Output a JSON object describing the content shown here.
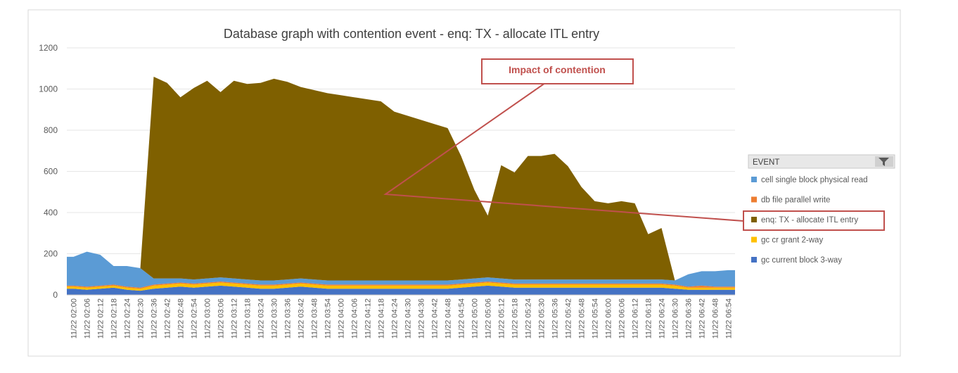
{
  "chart_data": {
    "type": "area",
    "title": "Database graph with contention event - enq: TX - allocate ITL entry",
    "xlabel": "",
    "ylabel": "",
    "ylim": [
      0,
      1200
    ],
    "yticks": [
      0,
      200,
      400,
      600,
      800,
      1000,
      1200
    ],
    "grid": true,
    "legend_position": "right",
    "legend_header": "EVENT",
    "x_tick_labels": [
      "11/22 02:00",
      "11/22 02:06",
      "11/22 02:12",
      "11/22 02:18",
      "11/22 02:24",
      "11/22 02:30",
      "11/22 02:36",
      "11/22 02:42",
      "11/22 02:48",
      "11/22 02:54",
      "11/22 03:00",
      "11/22 03:06",
      "11/22 03:12",
      "11/22 03:18",
      "11/22 03:24",
      "11/22 03:30",
      "11/22 03:36",
      "11/22 03:42",
      "11/22 03:48",
      "11/22 03:54",
      "11/22 04:00",
      "11/22 04:06",
      "11/22 04:12",
      "11/22 04:18",
      "11/22 04:24",
      "11/22 04:30",
      "11/22 04:36",
      "11/22 04:42",
      "11/22 04:48",
      "11/22 04:54",
      "11/22 05:00",
      "11/22 05:06",
      "11/22 05:12",
      "11/22 05:18",
      "11/22 05:24",
      "11/22 05:30",
      "11/22 05:36",
      "11/22 05:42",
      "11/22 05:48",
      "11/22 05:54",
      "11/22 06:00",
      "11/22 06:06",
      "11/22 06:12",
      "11/22 06:18",
      "11/22 06:24",
      "11/22 06:30",
      "11/22 06:36",
      "11/22 06:42",
      "11/22 06:48",
      "11/22 06:54"
    ],
    "series": [
      {
        "name": "cell single block physical read",
        "color": "#5b9bd5",
        "values": [
          140,
          170,
          150,
          90,
          100,
          95,
          30,
          25,
          20,
          20,
          20,
          20,
          20,
          20,
          20,
          20,
          20,
          20,
          20,
          20,
          20,
          20,
          20,
          20,
          20,
          20,
          20,
          20,
          20,
          20,
          20,
          20,
          20,
          20,
          20,
          20,
          20,
          20,
          20,
          20,
          20,
          20,
          20,
          20,
          20,
          20,
          60,
          70,
          75,
          80
        ]
      },
      {
        "name": "db file parallel write",
        "color": "#ed7d31",
        "values": [
          5,
          5,
          5,
          5,
          5,
          5,
          5,
          5,
          5,
          5,
          5,
          5,
          5,
          5,
          5,
          5,
          5,
          5,
          5,
          5,
          5,
          5,
          5,
          5,
          5,
          5,
          5,
          5,
          5,
          5,
          5,
          5,
          5,
          5,
          5,
          5,
          5,
          5,
          5,
          5,
          5,
          5,
          5,
          5,
          5,
          5,
          5,
          10,
          5,
          5
        ]
      },
      {
        "name": "enq: TX - allocate ITL entry",
        "color": "#7f6000",
        "values": [
          0,
          0,
          0,
          0,
          0,
          0,
          980,
          950,
          880,
          930,
          960,
          900,
          960,
          950,
          960,
          980,
          960,
          930,
          920,
          910,
          900,
          890,
          880,
          870,
          820,
          800,
          780,
          760,
          740,
          600,
          430,
          300,
          550,
          520,
          600,
          600,
          610,
          550,
          450,
          380,
          370,
          380,
          370,
          220,
          250,
          0,
          0,
          0,
          0,
          0
        ]
      },
      {
        "name": "gc cr grant 2-way",
        "color": "#ffc000",
        "values": [
          10,
          10,
          10,
          10,
          10,
          10,
          15,
          15,
          15,
          15,
          15,
          15,
          15,
          15,
          15,
          15,
          15,
          15,
          15,
          15,
          15,
          15,
          15,
          15,
          15,
          15,
          15,
          15,
          15,
          15,
          15,
          15,
          15,
          15,
          15,
          15,
          15,
          15,
          15,
          15,
          15,
          15,
          15,
          15,
          15,
          15,
          10,
          10,
          10,
          10
        ]
      },
      {
        "name": "gc current block 3-way",
        "color": "#4472c4",
        "values": [
          30,
          25,
          30,
          35,
          25,
          20,
          30,
          35,
          40,
          35,
          40,
          45,
          40,
          35,
          30,
          30,
          35,
          40,
          35,
          30,
          30,
          30,
          30,
          30,
          30,
          30,
          30,
          30,
          30,
          35,
          40,
          45,
          40,
          35,
          35,
          35,
          35,
          35,
          35,
          35,
          35,
          35,
          35,
          35,
          35,
          30,
          25,
          25,
          25,
          25
        ]
      }
    ]
  },
  "annotation": {
    "callout_text": "Impact of contention"
  }
}
